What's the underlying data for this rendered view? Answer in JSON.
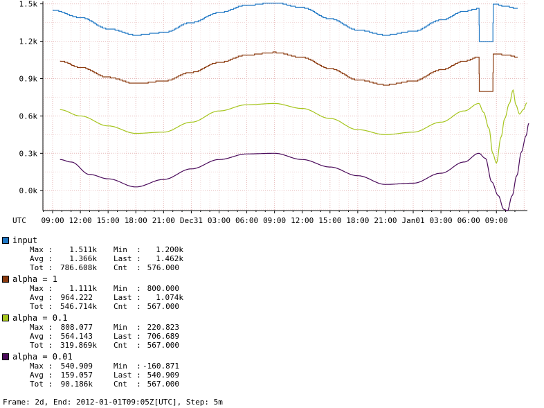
{
  "chart_data": {
    "type": "line",
    "y_ticks": [
      "1.5k",
      "1.2k",
      "0.9k",
      "0.6k",
      "0.3k",
      "0.0k"
    ],
    "y_tick_values": [
      1500,
      1200,
      900,
      600,
      300,
      0
    ],
    "ylim": [
      -160,
      1520
    ],
    "x_ticks": [
      "UTC",
      "09:00",
      "12:00",
      "15:00",
      "18:00",
      "21:00",
      "Dec31",
      "03:00",
      "06:00",
      "09:00",
      "12:00",
      "15:00",
      "18:00",
      "21:00",
      "Jan01",
      "03:00",
      "06:00",
      "09:00"
    ],
    "x_hours": [
      0,
      0,
      3,
      6,
      9,
      12,
      15,
      18,
      21,
      24,
      27,
      30,
      33,
      36,
      39,
      42,
      45,
      48
    ],
    "grid": true,
    "series": [
      {
        "name": "input",
        "color": "#1f77c4",
        "step": true,
        "points": [
          [
            0,
            1450
          ],
          [
            3,
            1390
          ],
          [
            6,
            1300
          ],
          [
            9,
            1250
          ],
          [
            12,
            1270
          ],
          [
            15,
            1350
          ],
          [
            18,
            1430
          ],
          [
            21,
            1490
          ],
          [
            24,
            1510
          ],
          [
            27,
            1470
          ],
          [
            30,
            1380
          ],
          [
            33,
            1290
          ],
          [
            36,
            1250
          ],
          [
            39,
            1280
          ],
          [
            42,
            1370
          ],
          [
            44.5,
            1440
          ],
          [
            46.1,
            1462
          ],
          [
            46.15,
            1200
          ],
          [
            47.6,
            1200
          ],
          [
            47.65,
            1500
          ],
          [
            49,
            1480
          ],
          [
            50.3,
            1462
          ]
        ]
      },
      {
        "name": "alpha = 1",
        "color": "#8b3a0f",
        "step": true,
        "points": [
          [
            0.8,
            1040
          ],
          [
            3,
            990
          ],
          [
            6,
            910
          ],
          [
            9,
            860
          ],
          [
            12,
            880
          ],
          [
            15,
            950
          ],
          [
            18,
            1030
          ],
          [
            21,
            1090
          ],
          [
            24,
            1110
          ],
          [
            27,
            1070
          ],
          [
            30,
            980
          ],
          [
            33,
            890
          ],
          [
            36,
            850
          ],
          [
            39,
            880
          ],
          [
            42,
            970
          ],
          [
            44.5,
            1040
          ],
          [
            46.1,
            1074
          ],
          [
            46.15,
            800
          ],
          [
            47.6,
            800
          ],
          [
            47.65,
            1100
          ],
          [
            49,
            1090
          ],
          [
            50.3,
            1074
          ]
        ]
      },
      {
        "name": "alpha = 0.1",
        "color": "#a6c51d",
        "step": false,
        "points": [
          [
            0.8,
            650
          ],
          [
            3,
            600
          ],
          [
            6,
            520
          ],
          [
            9,
            460
          ],
          [
            12,
            470
          ],
          [
            15,
            550
          ],
          [
            18,
            640
          ],
          [
            21,
            690
          ],
          [
            24,
            700
          ],
          [
            27,
            660
          ],
          [
            30,
            580
          ],
          [
            33,
            490
          ],
          [
            36,
            450
          ],
          [
            39,
            470
          ],
          [
            42,
            550
          ],
          [
            44.5,
            640
          ],
          [
            46.1,
            700
          ],
          [
            46.6,
            630
          ],
          [
            47.2,
            500
          ],
          [
            47.6,
            300
          ],
          [
            48.0,
            222
          ],
          [
            48.5,
            430
          ],
          [
            48.9,
            580
          ],
          [
            49.4,
            700
          ],
          [
            49.8,
            808
          ],
          [
            50.1,
            690
          ],
          [
            50.5,
            615
          ],
          [
            50.9,
            650
          ],
          [
            51.3,
            706
          ]
        ]
      },
      {
        "name": "alpha = 0.01",
        "color": "#4a0a5a",
        "step": false,
        "points": [
          [
            0.8,
            250
          ],
          [
            2,
            230
          ],
          [
            4,
            130
          ],
          [
            6,
            95
          ],
          [
            9,
            30
          ],
          [
            12,
            90
          ],
          [
            15,
            175
          ],
          [
            18,
            250
          ],
          [
            21,
            295
          ],
          [
            24,
            300
          ],
          [
            27,
            250
          ],
          [
            30,
            190
          ],
          [
            33,
            120
          ],
          [
            36,
            50
          ],
          [
            39,
            60
          ],
          [
            42,
            140
          ],
          [
            44.5,
            230
          ],
          [
            46.1,
            300
          ],
          [
            46.8,
            260
          ],
          [
            47.5,
            70
          ],
          [
            48.2,
            -40
          ],
          [
            48.8,
            -150
          ],
          [
            49.2,
            -161
          ],
          [
            49.7,
            -40
          ],
          [
            50.2,
            120
          ],
          [
            50.7,
            310
          ],
          [
            51.2,
            440
          ],
          [
            51.5,
            541
          ]
        ]
      }
    ],
    "x_hour_range": [
      -1.05,
      51.35
    ]
  },
  "legend": [
    {
      "name": "input",
      "color": "#1f77c4",
      "max": "1.511k",
      "min": "1.200k",
      "avg": "1.366k",
      "last": "1.462k",
      "tot": "786.608k",
      "cnt": "576.000"
    },
    {
      "name": "alpha = 1",
      "color": "#8b3a0f",
      "max": "1.111k",
      "min": "800.000",
      "avg": "964.222",
      "last": "1.074k",
      "tot": "546.714k",
      "cnt": "567.000"
    },
    {
      "name": "alpha = 0.1",
      "color": "#a6c51d",
      "max": "808.077",
      "min": "220.823",
      "avg": "564.143",
      "last": "706.689",
      "tot": "319.869k",
      "cnt": "567.000"
    },
    {
      "name": "alpha = 0.01",
      "color": "#4a0a5a",
      "max": "540.909",
      "min": "-160.871",
      "avg": "159.057",
      "last": "540.909",
      "tot": "90.186k",
      "cnt": "567.000"
    }
  ],
  "labels": {
    "max": "Max :",
    "min": "Min  :",
    "avg": "Avg :",
    "last": "Last :",
    "tot": "Tot :",
    "cnt": "Cnt  :"
  },
  "footer": "Frame: 2d, End: 2012-01-01T09:05Z[UTC], Step: 5m"
}
